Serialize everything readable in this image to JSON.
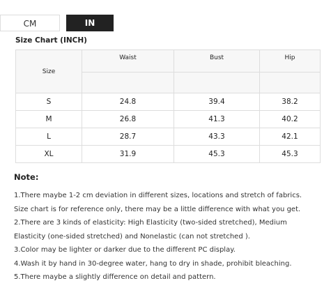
{
  "tabs": [
    "CM",
    "IN"
  ],
  "title": "Size Chart (INCH)",
  "table": {
    "header": [
      "Size",
      "Waist",
      "Bust",
      "Hip"
    ],
    "rows": [
      [
        "S",
        "24.8",
        "39.4",
        "38.2"
      ],
      [
        "M",
        "26.8",
        "41.3",
        "40.2"
      ],
      [
        "L",
        "28.7",
        "43.3",
        "42.1"
      ],
      [
        "XL",
        "31.9",
        "45.3",
        "45.3"
      ]
    ]
  },
  "note": {
    "title": "Note:",
    "items": [
      "1.There maybe 1-2 cm deviation in different sizes, locations and stretch of fabrics. Size chart is for reference only, there may be a little difference with what you get.",
      "2.There are 3 kinds of elasticity: High Elasticity (two-sided stretched), Medium Elasticity (one-sided stretched) and Nonelastic (can not stretched ).",
      "3.Color may be lighter or darker due to the different PC display.",
      "4.Wash it by hand in 30-degree water, hang to dry in shade, prohibit bleaching.",
      "5.There maybe a slightly difference on detail and pattern."
    ]
  }
}
